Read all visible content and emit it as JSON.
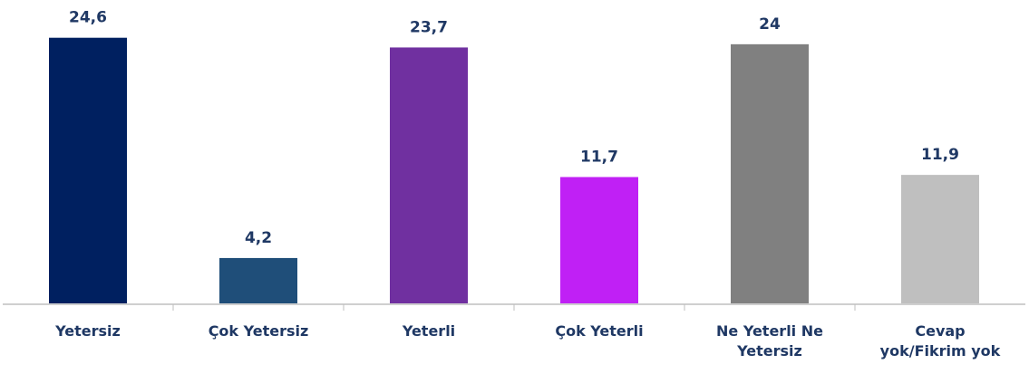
{
  "chart_data": {
    "type": "bar",
    "categories": [
      "Yetersiz",
      "Çok Yetersiz",
      "Yeterli",
      "Çok Yeterli",
      "Ne Yeterli Ne Yetersiz",
      "Cevap yok/Fikrim yok"
    ],
    "values": [
      24.6,
      4.2,
      23.7,
      11.7,
      24,
      11.9
    ],
    "value_labels": [
      "24,6",
      "4,2",
      "23,7",
      "11,7",
      "24",
      "11,9"
    ],
    "colors": [
      "#002060",
      "#1f4e79",
      "#7030a0",
      "#c020f5",
      "#808080",
      "#bfbfbf"
    ],
    "ylim": [
      0,
      26
    ]
  }
}
